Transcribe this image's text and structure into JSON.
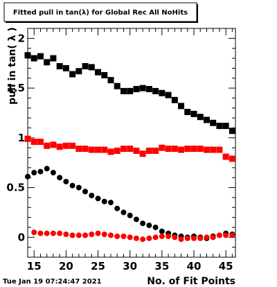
{
  "title": "Fitted pull in tan(λ) for Global Rec All NoHits",
  "timestamp": "Tue Jan 19 07:24:47 2021",
  "chart_data": {
    "type": "scatter",
    "title": "Fitted pull in tan(λ) for Global Rec All NoHits",
    "xlabel": "No. of Fit Points",
    "ylabel": "pull in tan( λ )",
    "xlim": [
      14,
      46.5
    ],
    "ylim": [
      -0.2,
      2.1
    ],
    "x_ticks": [
      15,
      20,
      25,
      30,
      35,
      40,
      45
    ],
    "y_ticks": [
      0,
      0.5,
      1,
      1.5,
      2
    ],
    "x_tick_labels": [
      "15",
      "20",
      "25",
      "30",
      "35",
      "40",
      "45"
    ],
    "y_tick_labels": [
      "0",
      "0.5",
      "1",
      "1.5",
      "2"
    ],
    "grid": false,
    "legend": "none",
    "x": [
      14,
      15,
      16,
      17,
      18,
      19,
      20,
      21,
      22,
      23,
      24,
      25,
      26,
      27,
      28,
      29,
      30,
      31,
      32,
      33,
      34,
      35,
      36,
      37,
      38,
      39,
      40,
      41,
      42,
      43,
      44,
      45,
      46
    ],
    "series": [
      {
        "marker": "square",
        "color": "#000000",
        "values": [
          1.83,
          1.8,
          1.82,
          1.76,
          1.8,
          1.72,
          1.7,
          1.64,
          1.67,
          1.72,
          1.71,
          1.66,
          1.63,
          1.58,
          1.52,
          1.47,
          1.47,
          1.49,
          1.5,
          1.49,
          1.47,
          1.45,
          1.43,
          1.38,
          1.32,
          1.26,
          1.24,
          1.21,
          1.18,
          1.15,
          1.12,
          1.12,
          1.07
        ]
      },
      {
        "marker": "square",
        "color": "#ff0000",
        "values": [
          0.99,
          0.96,
          0.96,
          0.92,
          0.93,
          0.91,
          0.92,
          0.92,
          0.89,
          0.89,
          0.88,
          0.88,
          0.88,
          0.86,
          0.87,
          0.89,
          0.89,
          0.87,
          0.84,
          0.87,
          0.87,
          0.9,
          0.89,
          0.89,
          0.88,
          0.89,
          0.89,
          0.89,
          0.88,
          0.88,
          0.88,
          0.81,
          0.79
        ]
      },
      {
        "marker": "circle",
        "color": "#000000",
        "values": [
          0.61,
          0.65,
          0.66,
          0.69,
          0.65,
          0.6,
          0.56,
          0.52,
          0.5,
          0.46,
          0.42,
          0.39,
          0.36,
          0.35,
          0.29,
          0.25,
          0.22,
          0.18,
          0.14,
          0.12,
          0.1,
          0.06,
          0.04,
          0.02,
          0.01,
          0.0,
          0.01,
          0.0,
          -0.01,
          0.01,
          0.02,
          0.04,
          0.03
        ]
      },
      {
        "marker": "circle",
        "color": "#ff0000",
        "values": [
          null,
          0.05,
          0.04,
          0.04,
          0.04,
          0.04,
          0.03,
          0.02,
          0.02,
          0.02,
          0.03,
          0.04,
          0.03,
          0.02,
          0.01,
          0.01,
          0.0,
          -0.01,
          -0.02,
          -0.01,
          0.0,
          0.01,
          0.01,
          0.0,
          -0.02,
          -0.01,
          -0.01,
          -0.01,
          0.0,
          0.0,
          0.02,
          0.02,
          0.02
        ]
      }
    ]
  }
}
